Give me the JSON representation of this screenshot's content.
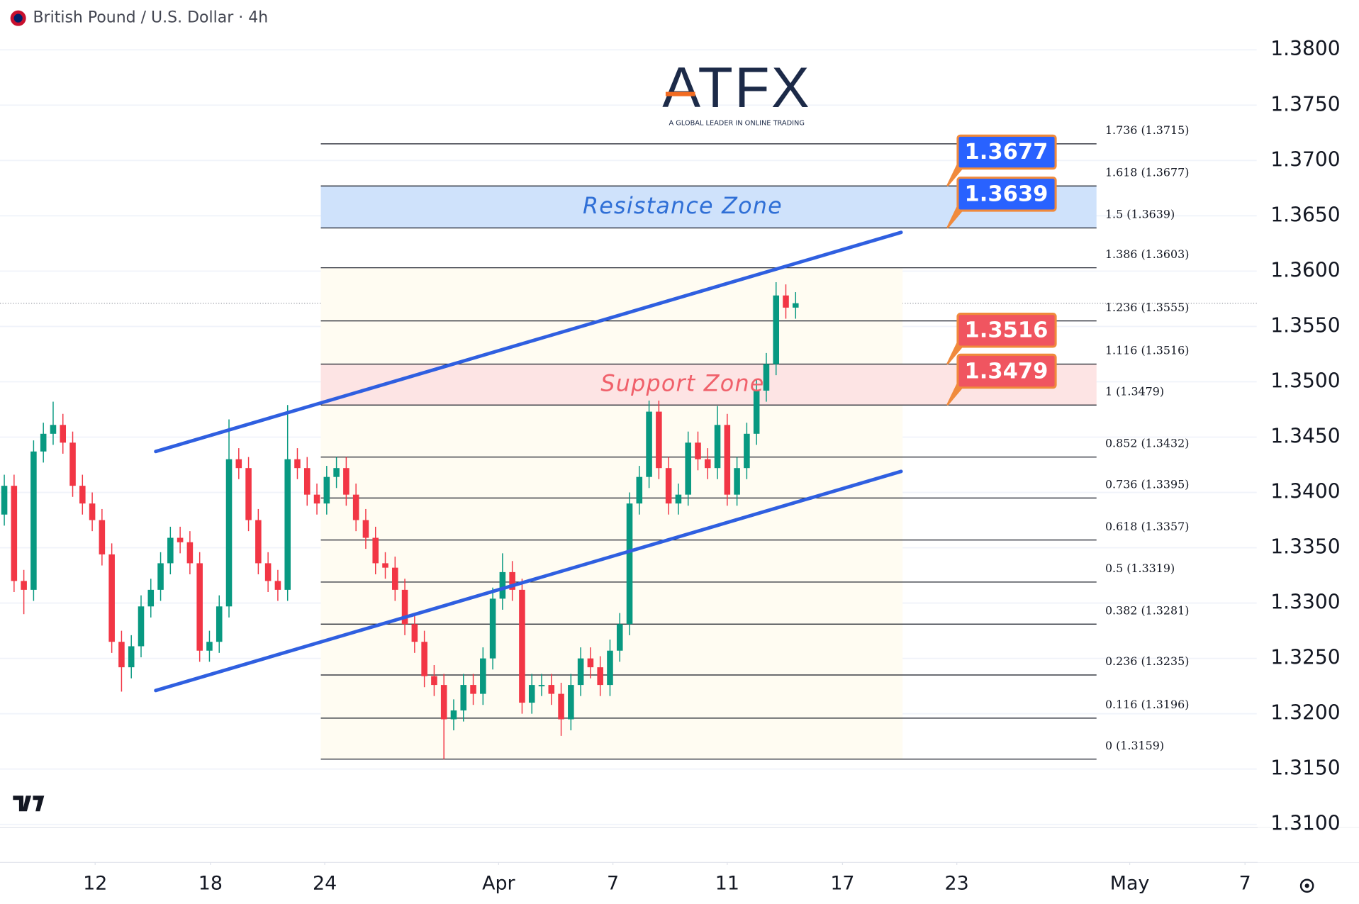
{
  "header": {
    "title": "British Pound / U.S. Dollar · 4h"
  },
  "logo": {
    "name": "ATFX",
    "tagline": "A GLOBAL LEADER IN ONLINE TRADING"
  },
  "chart_data": {
    "type": "candlestick",
    "up_color": "#089981",
    "down_color": "#f23645",
    "candles": {
      "open": [
        1.338,
        1.3406,
        1.332,
        1.3312,
        1.3437,
        1.3453,
        1.3461,
        1.3445,
        1.3406,
        1.339,
        1.3375,
        1.3344,
        1.3265,
        1.3242,
        1.3261,
        1.3297,
        1.3312,
        1.3336,
        1.3359,
        1.3355,
        1.3336,
        1.3257,
        1.3265,
        1.3297,
        1.343,
        1.3422,
        1.3375,
        1.3336,
        1.332,
        1.3312,
        1.343,
        1.3422,
        1.3398,
        1.339,
        1.3414,
        1.3422,
        1.3398,
        1.3375,
        1.3359,
        1.3336,
        1.3332,
        1.3312,
        1.3281,
        1.3265,
        1.3234,
        1.3226,
        1.3195,
        1.3203,
        1.3226,
        1.3218,
        1.325,
        1.3304,
        1.3328,
        1.3312,
        1.321,
        1.3226,
        1.3226,
        1.3218,
        1.3195,
        1.3226,
        1.325,
        1.3242,
        1.3226,
        1.3257,
        1.3281,
        1.339,
        1.3414,
        1.3473,
        1.3422,
        1.339,
        1.3398,
        1.3445,
        1.343,
        1.3422,
        1.3461,
        1.3398,
        1.3422,
        1.3453,
        1.3492,
        1.3516,
        1.3578,
        1.3567
      ],
      "high": [
        1.3416,
        1.3416,
        1.333,
        1.3447,
        1.3463,
        1.3482,
        1.3471,
        1.3455,
        1.3416,
        1.34,
        1.3385,
        1.3354,
        1.3275,
        1.3271,
        1.3307,
        1.3322,
        1.3346,
        1.3369,
        1.3369,
        1.3365,
        1.3346,
        1.3275,
        1.3307,
        1.3466,
        1.344,
        1.3432,
        1.3385,
        1.3346,
        1.333,
        1.3479,
        1.344,
        1.3432,
        1.3408,
        1.3424,
        1.3432,
        1.3432,
        1.3408,
        1.3385,
        1.3369,
        1.3346,
        1.3342,
        1.3322,
        1.3291,
        1.3275,
        1.3244,
        1.3236,
        1.3213,
        1.3236,
        1.3236,
        1.326,
        1.3314,
        1.3345,
        1.3338,
        1.3322,
        1.3236,
        1.3236,
        1.3236,
        1.3228,
        1.3236,
        1.326,
        1.326,
        1.3252,
        1.3267,
        1.3291,
        1.34,
        1.3424,
        1.3483,
        1.3483,
        1.3432,
        1.3408,
        1.3455,
        1.3455,
        1.344,
        1.3478,
        1.3471,
        1.3432,
        1.3463,
        1.3502,
        1.3526,
        1.359,
        1.3588,
        1.3581
      ],
      "low": [
        1.337,
        1.331,
        1.329,
        1.3302,
        1.3427,
        1.3443,
        1.3435,
        1.3396,
        1.338,
        1.3365,
        1.3334,
        1.3255,
        1.322,
        1.3232,
        1.3251,
        1.3287,
        1.3302,
        1.3326,
        1.3345,
        1.3326,
        1.3247,
        1.3247,
        1.3255,
        1.3287,
        1.3412,
        1.3365,
        1.3326,
        1.331,
        1.3302,
        1.3302,
        1.3412,
        1.3388,
        1.338,
        1.338,
        1.3404,
        1.3388,
        1.3365,
        1.3349,
        1.3326,
        1.3322,
        1.3302,
        1.3271,
        1.3255,
        1.3224,
        1.3216,
        1.3159,
        1.3185,
        1.3193,
        1.3208,
        1.3208,
        1.324,
        1.3294,
        1.3302,
        1.32,
        1.32,
        1.3216,
        1.3208,
        1.318,
        1.3185,
        1.3216,
        1.3232,
        1.3216,
        1.3216,
        1.3247,
        1.3271,
        1.338,
        1.3404,
        1.3412,
        1.338,
        1.338,
        1.3388,
        1.342,
        1.3412,
        1.3412,
        1.3388,
        1.3388,
        1.3412,
        1.3443,
        1.3482,
        1.3506,
        1.3557,
        1.3557
      ],
      "close": [
        1.3406,
        1.332,
        1.3312,
        1.3437,
        1.3453,
        1.3461,
        1.3445,
        1.3406,
        1.339,
        1.3375,
        1.3344,
        1.3265,
        1.3242,
        1.3261,
        1.3297,
        1.3312,
        1.3336,
        1.3359,
        1.3355,
        1.3336,
        1.3257,
        1.3265,
        1.3297,
        1.343,
        1.3422,
        1.3375,
        1.3336,
        1.332,
        1.3312,
        1.343,
        1.3422,
        1.3398,
        1.339,
        1.3414,
        1.3422,
        1.3398,
        1.3375,
        1.3359,
        1.3336,
        1.3332,
        1.3312,
        1.3281,
        1.3265,
        1.3234,
        1.3226,
        1.3195,
        1.3203,
        1.3226,
        1.3218,
        1.325,
        1.3304,
        1.3328,
        1.3312,
        1.321,
        1.3226,
        1.3226,
        1.3218,
        1.3195,
        1.3226,
        1.325,
        1.3242,
        1.3226,
        1.3257,
        1.3281,
        1.339,
        1.3414,
        1.3473,
        1.3422,
        1.339,
        1.3398,
        1.3445,
        1.343,
        1.3422,
        1.3461,
        1.3398,
        1.3422,
        1.3453,
        1.3492,
        1.3516,
        1.3578,
        1.3567,
        1.3571
      ]
    },
    "xlim": [
      -0.44,
      128.2
    ],
    "xticks": [
      {
        "value": 9.3,
        "label": "12"
      },
      {
        "value": 21.1,
        "label": "18"
      },
      {
        "value": 32.8,
        "label": "24"
      },
      {
        "value": 50.6,
        "label": "Apr"
      },
      {
        "value": 62.3,
        "label": "7"
      },
      {
        "value": 74.0,
        "label": "11"
      },
      {
        "value": 85.8,
        "label": "17"
      },
      {
        "value": 97.5,
        "label": "23"
      },
      {
        "value": 115.2,
        "label": "May"
      },
      {
        "value": 127.0,
        "label": "7"
      }
    ],
    "ylim": [
      1.3097,
      1.3845
    ],
    "yticks": [
      {
        "value": 1.31,
        "label": "1.3100"
      },
      {
        "value": 1.315,
        "label": "1.3150"
      },
      {
        "value": 1.32,
        "label": "1.3200"
      },
      {
        "value": 1.325,
        "label": "1.3250"
      },
      {
        "value": 1.33,
        "label": "1.3300"
      },
      {
        "value": 1.335,
        "label": "1.3350"
      },
      {
        "value": 1.34,
        "label": "1.3400"
      },
      {
        "value": 1.345,
        "label": "1.3450"
      },
      {
        "value": 1.35,
        "label": "1.3500"
      },
      {
        "value": 1.355,
        "label": "1.3550"
      },
      {
        "value": 1.36,
        "label": "1.3600"
      },
      {
        "value": 1.365,
        "label": "1.3650"
      },
      {
        "value": 1.37,
        "label": "1.3700"
      },
      {
        "value": 1.375,
        "label": "1.3750"
      },
      {
        "value": 1.38,
        "label": "1.3800"
      }
    ],
    "grid": true,
    "last_price": 1.3571,
    "fib_xrange": [
      32.4,
      111.8
    ],
    "fib_levels": [
      {
        "value": 1.3715,
        "label": "1.736 (1.3715)"
      },
      {
        "value": 1.3677,
        "label": "1.618 (1.3677)"
      },
      {
        "value": 1.3639,
        "label": "1.5 (1.3639)"
      },
      {
        "value": 1.3603,
        "label": "1.386 (1.3603)"
      },
      {
        "value": 1.3555,
        "label": "1.236 (1.3555)"
      },
      {
        "value": 1.3516,
        "label": "1.116 (1.3516)"
      },
      {
        "value": 1.3479,
        "label": "1 (1.3479)"
      },
      {
        "value": 1.3432,
        "label": "0.852 (1.3432)"
      },
      {
        "value": 1.3395,
        "label": "0.736 (1.3395)"
      },
      {
        "value": 1.3357,
        "label": "0.618 (1.3357)"
      },
      {
        "value": 1.3319,
        "label": "0.5 (1.3319)"
      },
      {
        "value": 1.3281,
        "label": "0.382 (1.3281)"
      },
      {
        "value": 1.3235,
        "label": "0.236 (1.3235)"
      },
      {
        "value": 1.3196,
        "label": "0.116 (1.3196)"
      },
      {
        "value": 1.3159,
        "label": "0 (1.3159)"
      }
    ],
    "zones": [
      {
        "name": "Resistance Zone",
        "low": 1.3639,
        "high": 1.3677,
        "color": "#cfe2fb",
        "text_color": "#2f6fd6"
      },
      {
        "name": "Support Zone",
        "low": 1.3479,
        "high": 1.3516,
        "color": "#fde4e4",
        "text_color": "#f0606a"
      }
    ],
    "badges": [
      {
        "value": 1.3677,
        "color": "#2962ff"
      },
      {
        "value": 1.3639,
        "color": "#2962ff"
      },
      {
        "value": 1.3516,
        "color": "#f05560"
      },
      {
        "value": 1.3479,
        "color": "#f05560"
      }
    ],
    "channel": {
      "color": "#2f5fe0",
      "lines": [
        {
          "x": [
            15.5,
            91.8
          ],
          "y": [
            1.3437,
            1.3635
          ]
        },
        {
          "x": [
            15.5,
            91.8
          ],
          "y": [
            1.3221,
            1.3419
          ]
        }
      ]
    }
  }
}
